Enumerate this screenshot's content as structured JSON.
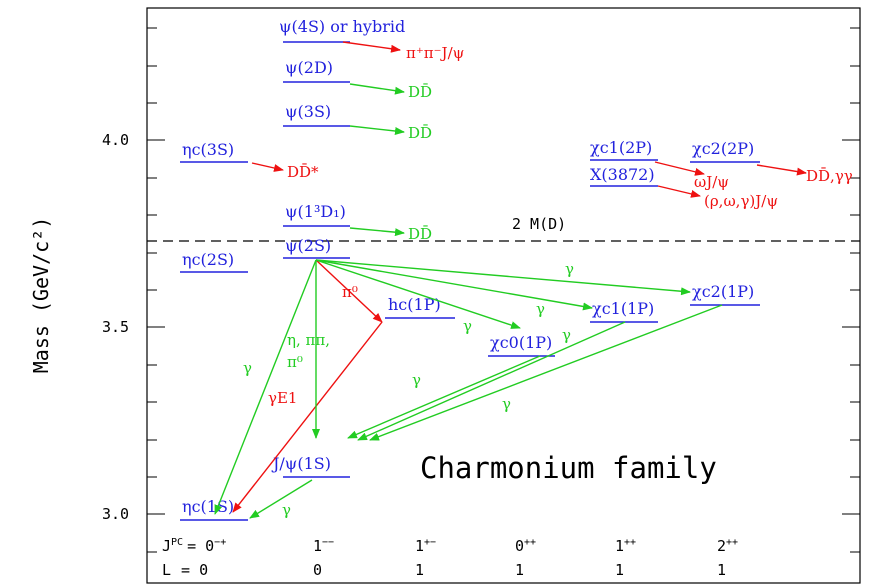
{
  "colors": {
    "state": "#2222dd",
    "em": "#22cc22",
    "hadronic": "#ee1111",
    "axis": "#000000"
  },
  "y_axis": {
    "label": "Mass (GeV/c²)",
    "ticks": [
      "3.0",
      "3.5",
      "4.0"
    ],
    "range": [
      2.9,
      4.3
    ]
  },
  "title": "Charmonium family",
  "threshold": {
    "label": "2 M(D)",
    "mass": 3.73
  },
  "quantum_numbers": {
    "jpc_prefix": "J",
    "jpc_prefix_sup": "PC",
    "jpc_eq": "= 0",
    "jpc_eq_sup": "−+",
    "l_prefix": "L",
    "l_eq": "= 0",
    "columns": [
      {
        "jpc": "1",
        "sup": "−−",
        "l": "0"
      },
      {
        "jpc": "1",
        "sup": "+−",
        "l": "1"
      },
      {
        "jpc": "0",
        "sup": "++",
        "l": "1"
      },
      {
        "jpc": "1",
        "sup": "++",
        "l": "1"
      },
      {
        "jpc": "2",
        "sup": "++",
        "l": "1"
      }
    ]
  },
  "states": [
    {
      "id": "etac3s",
      "label": "ηc(3S)",
      "mass": 3.94
    },
    {
      "id": "etac2s",
      "label": "ηc(2S)",
      "mass": 3.64
    },
    {
      "id": "etac1s",
      "label": "ηc(1S)",
      "mass": 2.98
    },
    {
      "id": "psi4s",
      "label": "ψ(4S) or hybrid",
      "mass": 4.28
    },
    {
      "id": "psi2d",
      "label": "ψ(2D)",
      "mass": 4.16
    },
    {
      "id": "psi3s",
      "label": "ψ(3S)",
      "mass": 4.04
    },
    {
      "id": "psi13d1",
      "label": "ψ(1³D₁)",
      "mass": 3.77
    },
    {
      "id": "psi2s",
      "label": "ψ(2S)",
      "mass": 3.69
    },
    {
      "id": "jpsi",
      "label": "J/ψ(1S)",
      "mass": 3.1
    },
    {
      "id": "hc1p",
      "label": "hc(1P)",
      "mass": 3.53
    },
    {
      "id": "chic01p",
      "label": "χc0(1P)",
      "mass": 3.41
    },
    {
      "id": "chic11p",
      "label": "χc1(1P)",
      "mass": 3.51
    },
    {
      "id": "chic21p",
      "label": "χc2(1P)",
      "mass": 3.56
    },
    {
      "id": "chic12p",
      "label": "χc1(2P)",
      "mass": 3.94
    },
    {
      "id": "x3872",
      "label": "X(3872)",
      "mass": 3.87
    },
    {
      "id": "chic22p",
      "label": "χc2(2P)",
      "mass": 3.93
    }
  ],
  "decay_labels": {
    "pipijpsi": "π⁺π⁻J/ψ",
    "dd_psi2d": "DD̄",
    "dd_psi3s": "DD̄",
    "dd_psi13d1": "DD̄",
    "dd_star": "DD̄*",
    "omegajpsi": "ωJ/ψ",
    "rhoomegagamma": "(ρ,ω,γ)J/ψ",
    "ddgammagamma": "DD̄,γγ",
    "gamma": "γ",
    "gamma_e1": "γE1",
    "pi0": "π⁰",
    "eta_pipi_1": "η, ππ,",
    "eta_pipi_2": "π⁰"
  }
}
